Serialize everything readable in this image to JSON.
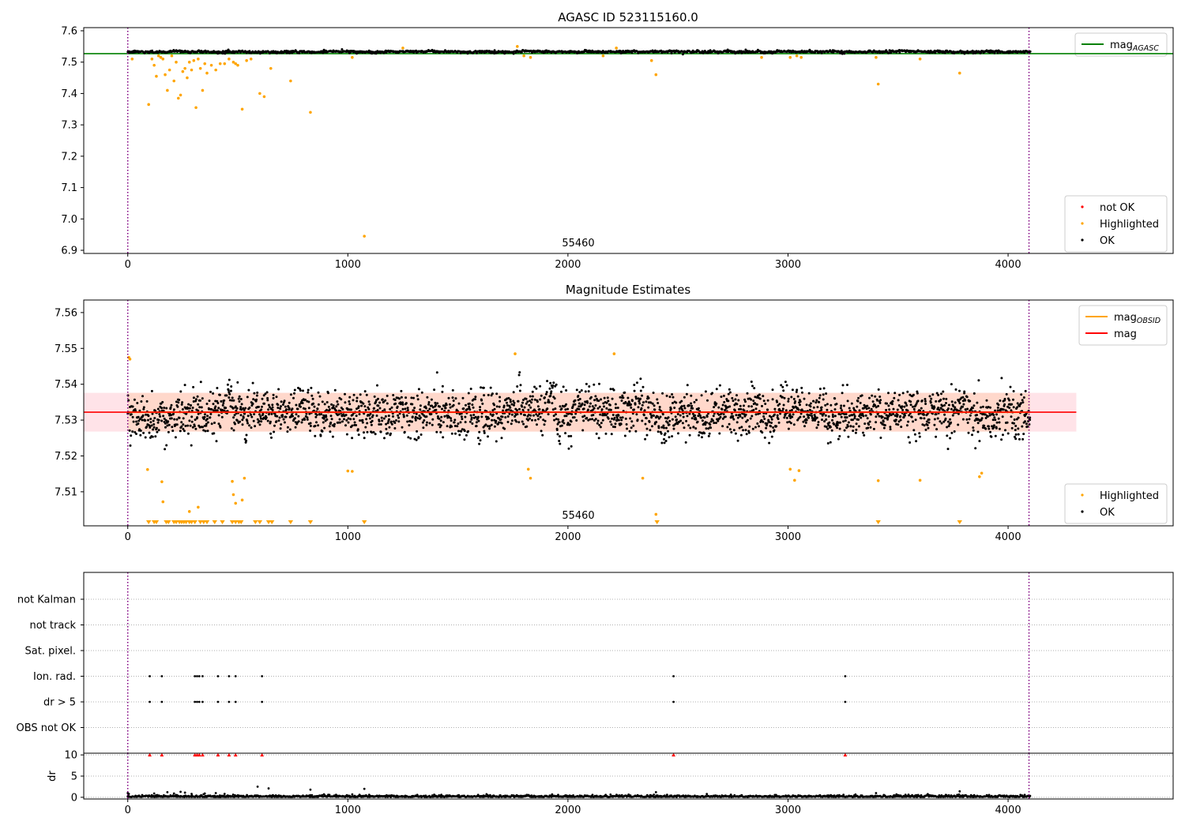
{
  "figure": {
    "suptitle_top": "AGASC ID 523115160.0",
    "title_mid": "Magnitude Estimates",
    "obsid_label": "55460"
  },
  "colors": {
    "ok": "#000000",
    "highlighted": "#ffa500",
    "not_ok": "#ff0000",
    "mag_agasc": "#008000",
    "mag_obsid": "#ffa500",
    "mag": "#ff0000",
    "band": "#ffc0cb",
    "band_mid": "#ffd0b8",
    "obs_boundary": "#800080",
    "grid": "#b0b0b0"
  },
  "chart_data": [
    {
      "type": "scatter",
      "title": "AGASC ID 523115160.0",
      "annotation": "55460",
      "xlim": [
        -200,
        4750
      ],
      "ylim": [
        6.89,
        7.61
      ],
      "xticks": [
        0,
        1000,
        2000,
        3000,
        4000
      ],
      "yticks": [
        6.9,
        7.0,
        7.1,
        7.2,
        7.3,
        7.4,
        7.5,
        7.6
      ],
      "obs_boundaries": [
        0,
        4095
      ],
      "lines": [
        {
          "name": "mag",
          "sub": "AGASC",
          "y": 7.527,
          "x": [
            -200,
            4750
          ]
        }
      ],
      "legends": [
        {
          "loc": "upper right",
          "entries": [
            {
              "label": "mag",
              "sub": "AGASC",
              "kind": "line",
              "color": "#008000"
            }
          ]
        },
        {
          "loc": "lower right",
          "entries": [
            {
              "label": "not OK",
              "kind": "dot",
              "color": "#ff0000"
            },
            {
              "label": "Highlighted",
              "kind": "dot",
              "color": "#ffa500"
            },
            {
              "label": "OK",
              "kind": "dot",
              "color": "#000000"
            }
          ]
        }
      ],
      "ok_band": {
        "x": [
          0,
          4100
        ],
        "center": 7.533,
        "spread": 0.0035,
        "n": 1400
      },
      "highlighted": {
        "x": [
          20,
          95,
          110,
          120,
          130,
          140,
          150,
          160,
          170,
          180,
          190,
          200,
          210,
          220,
          230,
          240,
          250,
          260,
          270,
          280,
          290,
          300,
          310,
          320,
          330,
          340,
          350,
          360,
          380,
          400,
          420,
          440,
          460,
          480,
          490,
          500,
          520,
          540,
          560,
          600,
          620,
          650,
          740,
          830,
          1020,
          1075,
          1250,
          1770,
          1800,
          1830,
          2160,
          2220,
          2380,
          2400,
          2880,
          3010,
          3040,
          3060,
          3400,
          3410,
          3600,
          3780
        ],
        "y": [
          7.51,
          7.365,
          7.51,
          7.49,
          7.455,
          7.52,
          7.515,
          7.51,
          7.46,
          7.41,
          7.475,
          7.52,
          7.44,
          7.5,
          7.385,
          7.395,
          7.47,
          7.48,
          7.45,
          7.5,
          7.475,
          7.505,
          7.355,
          7.51,
          7.48,
          7.41,
          7.495,
          7.465,
          7.49,
          7.475,
          7.495,
          7.495,
          7.51,
          7.5,
          7.495,
          7.49,
          7.35,
          7.505,
          7.51,
          7.4,
          7.39,
          7.48,
          7.44,
          7.34,
          7.515,
          6.945,
          7.545,
          7.55,
          7.52,
          7.515,
          7.52,
          7.545,
          7.505,
          7.46,
          7.515,
          7.515,
          7.52,
          7.515,
          7.515,
          7.43,
          7.51,
          7.465
        ],
        "color": "#ffa500"
      }
    },
    {
      "type": "scatter",
      "title": "Magnitude Estimates",
      "annotation": "55460",
      "xlim": [
        -200,
        4750
      ],
      "ylim": [
        7.5005,
        7.5635
      ],
      "xticks": [
        0,
        1000,
        2000,
        3000,
        4000
      ],
      "yticks": [
        7.51,
        7.52,
        7.53,
        7.54,
        7.55,
        7.56
      ],
      "obs_boundaries": [
        0,
        4095
      ],
      "lines": [
        {
          "name": "mag",
          "sub": "OBSID",
          "y": 7.5322,
          "x": [
            0,
            4100
          ],
          "color": "#ffa500"
        },
        {
          "name": "mag",
          "y": 7.5322,
          "x": [
            -200,
            4310
          ],
          "color": "#ff0000"
        }
      ],
      "band": {
        "x": [
          -200,
          4310
        ],
        "y": [
          7.5268,
          7.5376
        ]
      },
      "band_mid": {
        "x": [
          0,
          4100
        ],
        "y": [
          7.5268,
          7.5376
        ]
      },
      "legends": [
        {
          "loc": "upper right",
          "entries": [
            {
              "label": "mag",
              "sub": "OBSID",
              "kind": "line",
              "color": "#ffa500"
            },
            {
              "label": "mag",
              "kind": "line",
              "color": "#ff0000"
            }
          ]
        },
        {
          "loc": "lower right",
          "entries": [
            {
              "label": "Highlighted",
              "kind": "dot",
              "color": "#ffa500"
            },
            {
              "label": "OK",
              "kind": "dot",
              "color": "#000000"
            }
          ]
        }
      ],
      "ok_band": {
        "x": [
          0,
          4100
        ],
        "center": 7.532,
        "spread": 0.0055,
        "n": 2600
      },
      "highlighted": {
        "x": [
          5,
          10,
          90,
          155,
          160,
          280,
          320,
          475,
          480,
          490,
          520,
          530,
          1000,
          1020,
          1820,
          1830,
          1760,
          2210,
          2340,
          2400,
          3010,
          3030,
          3050,
          3410,
          3600,
          3870,
          3880
        ],
        "y": [
          7.5475,
          7.547,
          7.5162,
          7.5128,
          7.5072,
          7.5045,
          7.5057,
          7.5129,
          7.5092,
          7.5068,
          7.5077,
          7.5138,
          7.5158,
          7.5157,
          7.5163,
          7.5138,
          7.5485,
          7.5485,
          7.5138,
          7.5037,
          7.5163,
          7.5132,
          7.5159,
          7.5131,
          7.5132,
          7.5142,
          7.5152
        ],
        "color": "#ffa500"
      },
      "below_range": {
        "x": [
          95,
          120,
          130,
          175,
          185,
          210,
          220,
          235,
          245,
          255,
          265,
          280,
          290,
          305,
          330,
          345,
          360,
          395,
          430,
          475,
          490,
          505,
          515,
          580,
          600,
          640,
          655,
          740,
          830,
          1075,
          2405,
          3410,
          3780
        ],
        "color": "#ffa500"
      }
    },
    {
      "type": "scatter",
      "xlim": [
        -200,
        4750
      ],
      "xticks": [
        0,
        1000,
        2000,
        3000,
        4000
      ],
      "obs_boundaries": [
        0,
        4095
      ],
      "flag_categories": [
        "not Kalman",
        "not track",
        "Sat. pixel.",
        "Ion. rad.",
        "dr > 5",
        "OBS not OK"
      ],
      "flag_points": {
        "Ion. rad.": [
          100,
          155,
          305,
          315,
          325,
          340,
          410,
          460,
          490,
          610,
          2480,
          3260
        ],
        "dr > 5": [
          100,
          155,
          305,
          315,
          325,
          340,
          410,
          460,
          490,
          610,
          2480,
          3260
        ]
      },
      "dr_panel": {
        "ylabel": "dr",
        "ylim": [
          -0.4,
          10.4
        ],
        "yticks": [
          0,
          5,
          10
        ],
        "dr_gt5_markers_x": [
          100,
          155,
          305,
          315,
          325,
          340,
          410,
          460,
          490,
          610,
          2480,
          3260
        ],
        "dr_gt5_color": "#ff0000",
        "outliers": {
          "x": [
            0,
            5,
            120,
            180,
            210,
            240,
            260,
            290,
            350,
            400,
            440,
            590,
            640,
            830,
            1075,
            2400,
            3400,
            3780
          ],
          "y": [
            1.0,
            0.8,
            0.9,
            1.2,
            0.9,
            1.3,
            1.1,
            0.8,
            0.9,
            1.0,
            0.8,
            2.5,
            2.1,
            1.8,
            2.0,
            1.2,
            1.0,
            1.4
          ]
        }
      }
    }
  ]
}
